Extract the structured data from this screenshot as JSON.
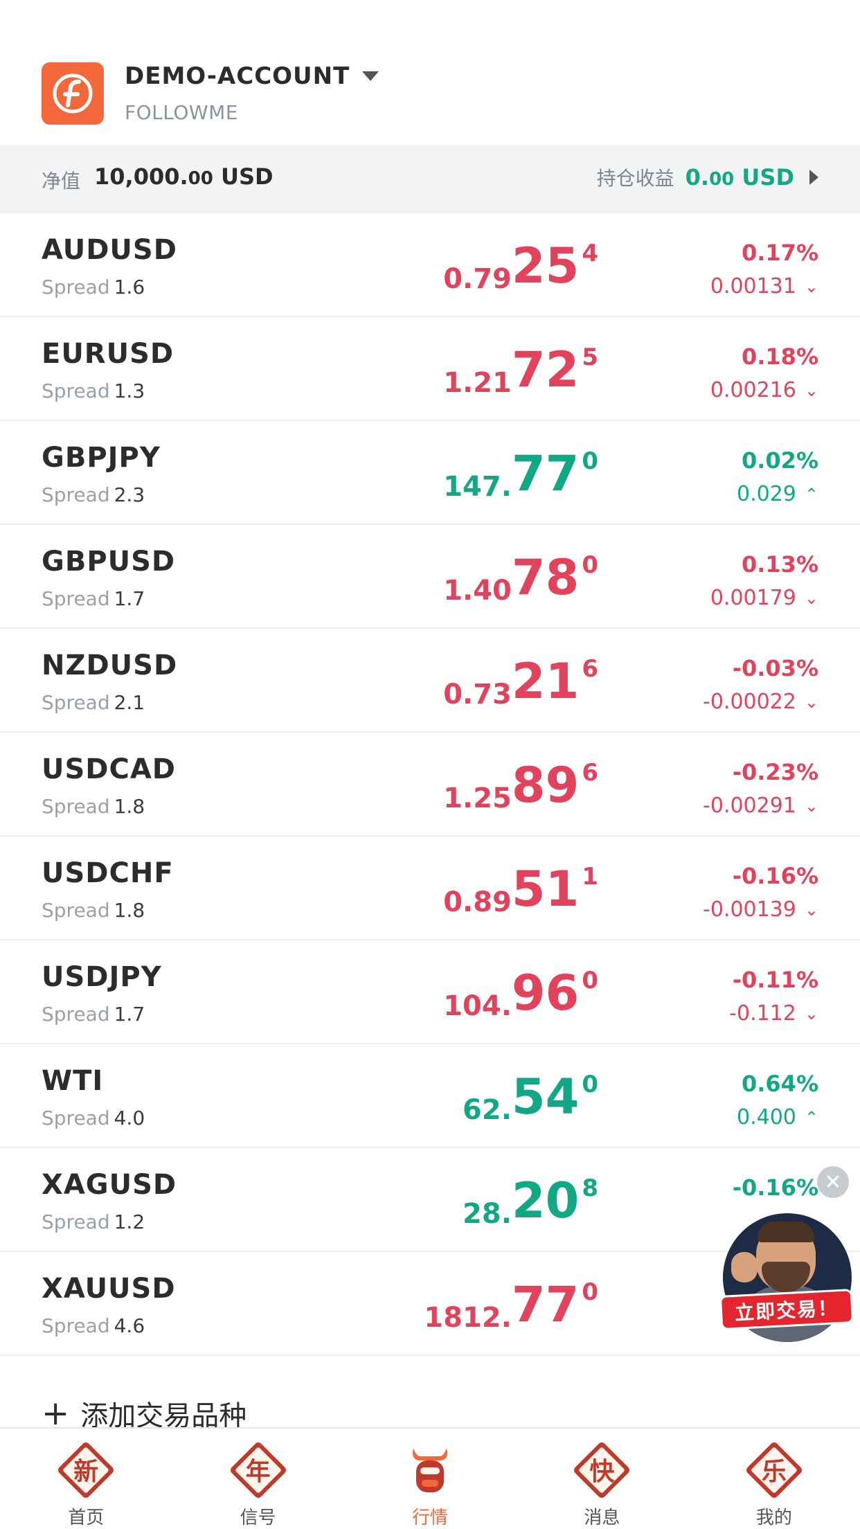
{
  "header": {
    "account_name": "DEMO-ACCOUNT",
    "account_sub": "FOLLOWME"
  },
  "equity": {
    "label": "净值",
    "value_int": "10,000.",
    "value_dec": "00",
    "currency": " USD",
    "pnl_label": "持仓收益",
    "pnl_int": "0.",
    "pnl_dec": "00",
    "pnl_currency": " USD"
  },
  "colors": {
    "up": "#12a886",
    "down": "#e0435b",
    "brand": "#f2683a"
  },
  "rows": [
    {
      "symbol": "AUDUSD",
      "spread_label": "Spread",
      "spread": "1.6",
      "price_pre": "0.79",
      "price_big": "25",
      "price_sup": "4",
      "price_color": "red",
      "pct": "0.17%",
      "abs": "0.00131",
      "chg_color": "red",
      "arrow": "down"
    },
    {
      "symbol": "EURUSD",
      "spread_label": "Spread",
      "spread": "1.3",
      "price_pre": "1.21",
      "price_big": "72",
      "price_sup": "5",
      "price_color": "red",
      "pct": "0.18%",
      "abs": "0.00216",
      "chg_color": "red",
      "arrow": "down"
    },
    {
      "symbol": "GBPJPY",
      "spread_label": "Spread",
      "spread": "2.3",
      "price_pre": "147.",
      "price_big": "77",
      "price_sup": "0",
      "price_color": "green",
      "pct": "0.02%",
      "abs": "0.029",
      "chg_color": "green",
      "arrow": "up"
    },
    {
      "symbol": "GBPUSD",
      "spread_label": "Spread",
      "spread": "1.7",
      "price_pre": "1.40",
      "price_big": "78",
      "price_sup": "0",
      "price_color": "red",
      "pct": "0.13%",
      "abs": "0.00179",
      "chg_color": "red",
      "arrow": "down"
    },
    {
      "symbol": "NZDUSD",
      "spread_label": "Spread",
      "spread": "2.1",
      "price_pre": "0.73",
      "price_big": "21",
      "price_sup": "6",
      "price_color": "red",
      "pct": "-0.03%",
      "abs": "-0.00022",
      "chg_color": "red",
      "arrow": "down"
    },
    {
      "symbol": "USDCAD",
      "spread_label": "Spread",
      "spread": "1.8",
      "price_pre": "1.25",
      "price_big": "89",
      "price_sup": "6",
      "price_color": "red",
      "pct": "-0.23%",
      "abs": "-0.00291",
      "chg_color": "red",
      "arrow": "down"
    },
    {
      "symbol": "USDCHF",
      "spread_label": "Spread",
      "spread": "1.8",
      "price_pre": "0.89",
      "price_big": "51",
      "price_sup": "1",
      "price_color": "red",
      "pct": "-0.16%",
      "abs": "-0.00139",
      "chg_color": "red",
      "arrow": "down"
    },
    {
      "symbol": "USDJPY",
      "spread_label": "Spread",
      "spread": "1.7",
      "price_pre": "104.",
      "price_big": "96",
      "price_sup": "0",
      "price_color": "red",
      "pct": "-0.11%",
      "abs": "-0.112",
      "chg_color": "red",
      "arrow": "down"
    },
    {
      "symbol": "WTI",
      "spread_label": "Spread",
      "spread": "4.0",
      "price_pre": "62.",
      "price_big": "54",
      "price_sup": "0",
      "price_color": "green",
      "pct": "0.64%",
      "abs": "0.400",
      "chg_color": "green",
      "arrow": "up"
    },
    {
      "symbol": "XAGUSD",
      "spread_label": "Spread",
      "spread": "1.2",
      "price_pre": "28.",
      "price_big": "20",
      "price_sup": "8",
      "price_color": "green",
      "pct": "-0.16%",
      "abs": "",
      "chg_color": "green",
      "arrow": ""
    },
    {
      "symbol": "XAUUSD",
      "spread_label": "Spread",
      "spread": "4.6",
      "price_pre": "1812.",
      "price_big": "77",
      "price_sup": "0",
      "price_color": "red",
      "pct": "",
      "abs": "",
      "chg_color": "red",
      "arrow": ""
    }
  ],
  "add_label": "添加交易品种",
  "promo": {
    "badge": "立即交易！",
    "close": "✕"
  },
  "tabs": [
    {
      "glyph": "新",
      "label": "首页"
    },
    {
      "glyph": "年",
      "label": "信号"
    },
    {
      "glyph": "",
      "label": "行情"
    },
    {
      "glyph": "快",
      "label": "消息"
    },
    {
      "glyph": "乐",
      "label": "我的"
    }
  ]
}
